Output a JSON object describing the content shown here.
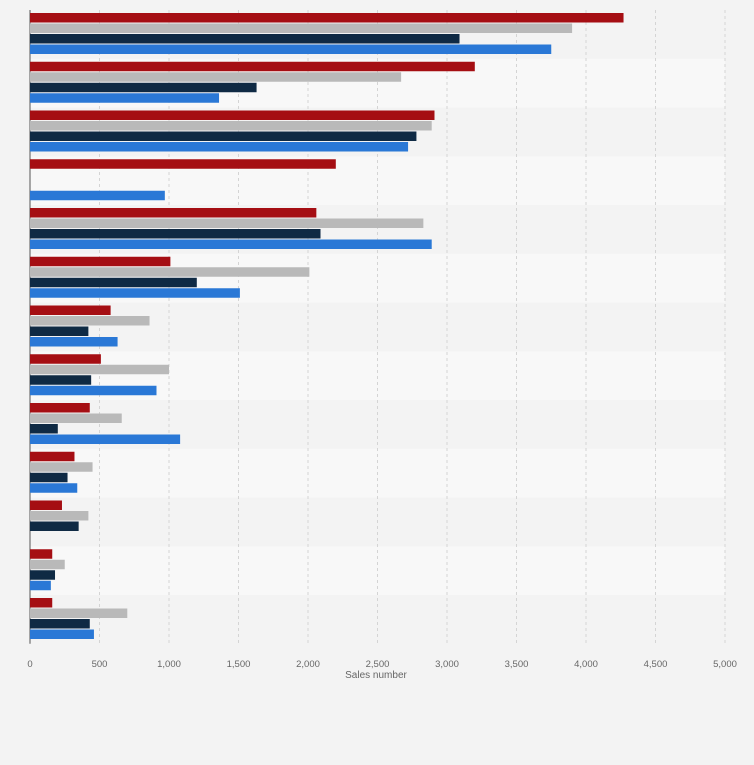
{
  "chart_data": {
    "type": "bar",
    "orientation": "horizontal",
    "categories": [
      "",
      "",
      "",
      "",
      "",
      "",
      "",
      "",
      "",
      "",
      "",
      "",
      ""
    ],
    "series": [
      {
        "color": "#a50e13",
        "values": [
          4270,
          3200,
          2910,
          2200,
          2060,
          1010,
          580,
          510,
          430,
          320,
          230,
          160,
          160
        ]
      },
      {
        "color": "#b9b9b9",
        "values": [
          3900,
          2670,
          2890,
          null,
          2830,
          2010,
          860,
          1000,
          660,
          450,
          420,
          250,
          700
        ]
      },
      {
        "color": "#0f2a44",
        "values": [
          3090,
          1630,
          2780,
          null,
          2090,
          1200,
          420,
          440,
          200,
          270,
          350,
          180,
          430
        ]
      },
      {
        "color": "#2a78d6",
        "values": [
          3750,
          1360,
          2720,
          970,
          2890,
          1510,
          630,
          910,
          1080,
          340,
          null,
          150,
          460
        ]
      }
    ],
    "xlabel": "Sales number",
    "ylabel": "",
    "xlim": [
      0,
      5000
    ],
    "xticks": [
      0,
      500,
      1000,
      1500,
      2000,
      2500,
      3000,
      3500,
      4000,
      4500,
      5000
    ],
    "xtick_labels": [
      "0",
      "500",
      "1,000",
      "1,500",
      "2,000",
      "2,500",
      "3,000",
      "3,500",
      "4,000",
      "4,500",
      "5,000"
    ],
    "grid": "vertical dashed",
    "legend": "none",
    "band_colors": [
      "#f3f3f3",
      "#f8f8f8"
    ]
  }
}
